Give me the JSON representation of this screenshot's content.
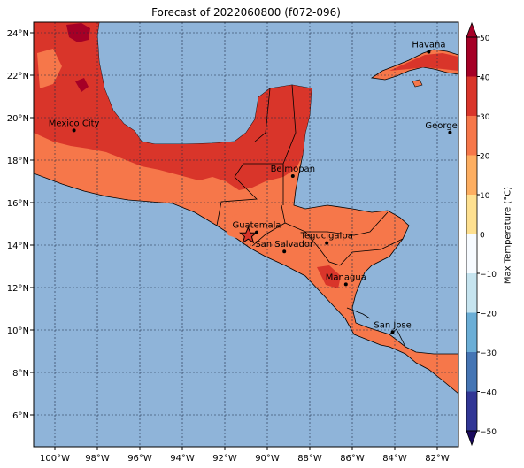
{
  "title": "Forecast of 2022060800 (f072-096)",
  "colors": {
    "ocean": "#8fb4d9",
    "level_20_30": "#f6774a",
    "level_30_40": "#d9352a",
    "level_40_50": "#a50026",
    "level_10_20": "#fdae61",
    "level_0_10": "#fee090",
    "border": "#000000"
  },
  "map": {
    "lon_range": [
      -101,
      -81
    ],
    "lat_range": [
      4.5,
      24.5
    ],
    "lon_ticks": [
      "100°W",
      "98°W",
      "96°W",
      "94°W",
      "92°W",
      "90°W",
      "88°W",
      "86°W",
      "84°W",
      "82°W"
    ],
    "lat_ticks": [
      "6°N",
      "8°N",
      "10°N",
      "12°N",
      "14°N",
      "16°N",
      "18°N",
      "20°N",
      "22°N",
      "24°N"
    ],
    "gridlines": true
  },
  "cities": [
    {
      "name": "Havana",
      "lon": -82.4,
      "lat": 23.1
    },
    {
      "name": "Mexico City",
      "lon": -99.1,
      "lat": 19.4
    },
    {
      "name": "George Tov",
      "lon": -81.4,
      "lat": 19.3
    },
    {
      "name": "Belmopan",
      "lon": -88.8,
      "lat": 17.25
    },
    {
      "name": "Guatemala",
      "lon": -90.5,
      "lat": 14.6
    },
    {
      "name": "Tegucigalpa",
      "lon": -87.2,
      "lat": 14.1
    },
    {
      "name": "San Salvador",
      "lon": -89.2,
      "lat": 13.7
    },
    {
      "name": "Managua",
      "lon": -86.3,
      "lat": 12.15
    },
    {
      "name": "San Jose",
      "lon": -84.1,
      "lat": 9.9
    }
  ],
  "star_marker": {
    "lon": -90.9,
    "lat": 14.45,
    "icon": "star-icon"
  },
  "colorbar": {
    "label": "Max Temperature (°C)",
    "ticks": [
      "50",
      "40",
      "30",
      "20",
      "10",
      "0",
      "−10",
      "−20",
      "−30",
      "−40",
      "−50"
    ],
    "colors": [
      "#a50026",
      "#d9352a",
      "#f6774a",
      "#fdae61",
      "#fee090",
      "#f7fbff",
      "#c6e4ef",
      "#6baed6",
      "#4575b4",
      "#313695"
    ]
  }
}
